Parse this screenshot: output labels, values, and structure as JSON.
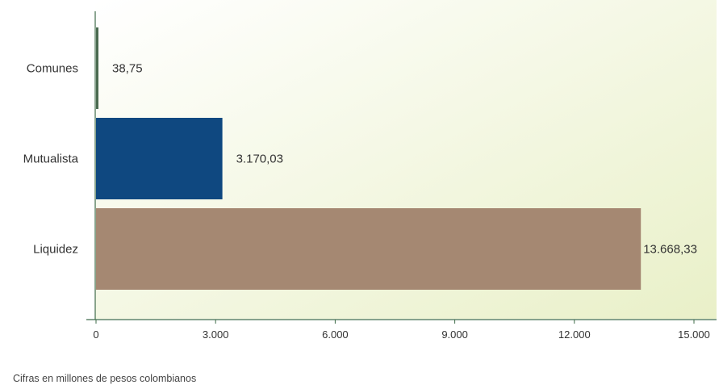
{
  "chart_data": {
    "type": "bar",
    "orientation": "horizontal",
    "categories": [
      "Comunes",
      "Mutualista",
      "Liquidez"
    ],
    "values": [
      38.75,
      3170.03,
      13668.33
    ],
    "value_labels": [
      "38,75",
      "3.170,03",
      "13.668,33"
    ],
    "xlim": [
      0,
      15000
    ],
    "xticks": [
      0,
      3000,
      6000,
      9000,
      12000,
      15000
    ],
    "xtick_labels": [
      "0",
      "3.000",
      "6.000",
      "9.000",
      "12.000",
      "15.000"
    ],
    "colors": [
      "#4a6a50",
      "#0f4880",
      "#a58872"
    ],
    "background_gradient": [
      "#ffffff",
      "#e9f0c8"
    ],
    "grid": false
  },
  "footnote": "Cifras en millones de pesos colombianos"
}
